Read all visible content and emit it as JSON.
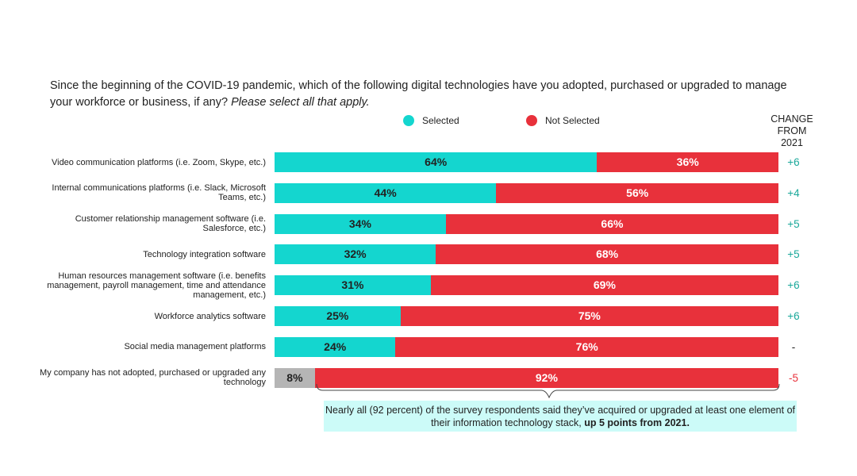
{
  "question": {
    "text": "Since the beginning of the COVID-19 pandemic, which of the following digital technologies have you adopted, purchased or upgraded to manage your workforce or business, if any?",
    "instruction": "Please select all that apply."
  },
  "legend": {
    "selected_label": "Selected",
    "not_selected_label": "Not Selected"
  },
  "change_header": "CHANGE\nFROM\n2021",
  "colors": {
    "selected": "#14d6cf",
    "not_selected": "#e8313b",
    "none_selected": "#b5b5b5",
    "change_positive": "#1aa89a",
    "change_negative": "#e8313b",
    "change_neutral": "#222222"
  },
  "chart_data": {
    "type": "bar",
    "orientation": "horizontal",
    "stacked": true,
    "xlim": [
      0,
      100
    ],
    "categories": [
      "Video communication platforms (i.e. Zoom, Skype, etc.)",
      "Internal communications platforms (i.e. Slack, Microsoft Teams, etc.)",
      "Customer relationship management software (i.e. Salesforce, etc.)",
      "Technology integration software",
      "Human resources management software (i.e. benefits management, payroll management, time and attendance management, etc.)",
      "Workforce analytics software",
      "Social media management platforms",
      "My company has not adopted, purchased or upgraded any technology"
    ],
    "series": [
      {
        "name": "Selected",
        "values": [
          64,
          44,
          34,
          32,
          31,
          25,
          24,
          8
        ]
      },
      {
        "name": "Not Selected",
        "values": [
          36,
          56,
          66,
          68,
          69,
          75,
          76,
          92
        ]
      }
    ],
    "value_labels_selected": [
      "64%",
      "44%",
      "34%",
      "32%",
      "31%",
      "25%",
      "24%",
      "8%"
    ],
    "value_labels_not_selected": [
      "36%",
      "56%",
      "66%",
      "68%",
      "69%",
      "75%",
      "76%",
      "92%"
    ],
    "change_from_2021": [
      "+6",
      "+4",
      "+5",
      "+5",
      "+6",
      "+6",
      "-",
      "-5"
    ],
    "legend": [
      "Selected",
      "Not Selected"
    ]
  },
  "callout": {
    "text": "Nearly all (92 percent) of the survey respondents said they’ve acquired or upgraded at least one element of their information technology stack,",
    "emphasis": "up 5 points from 2021."
  }
}
